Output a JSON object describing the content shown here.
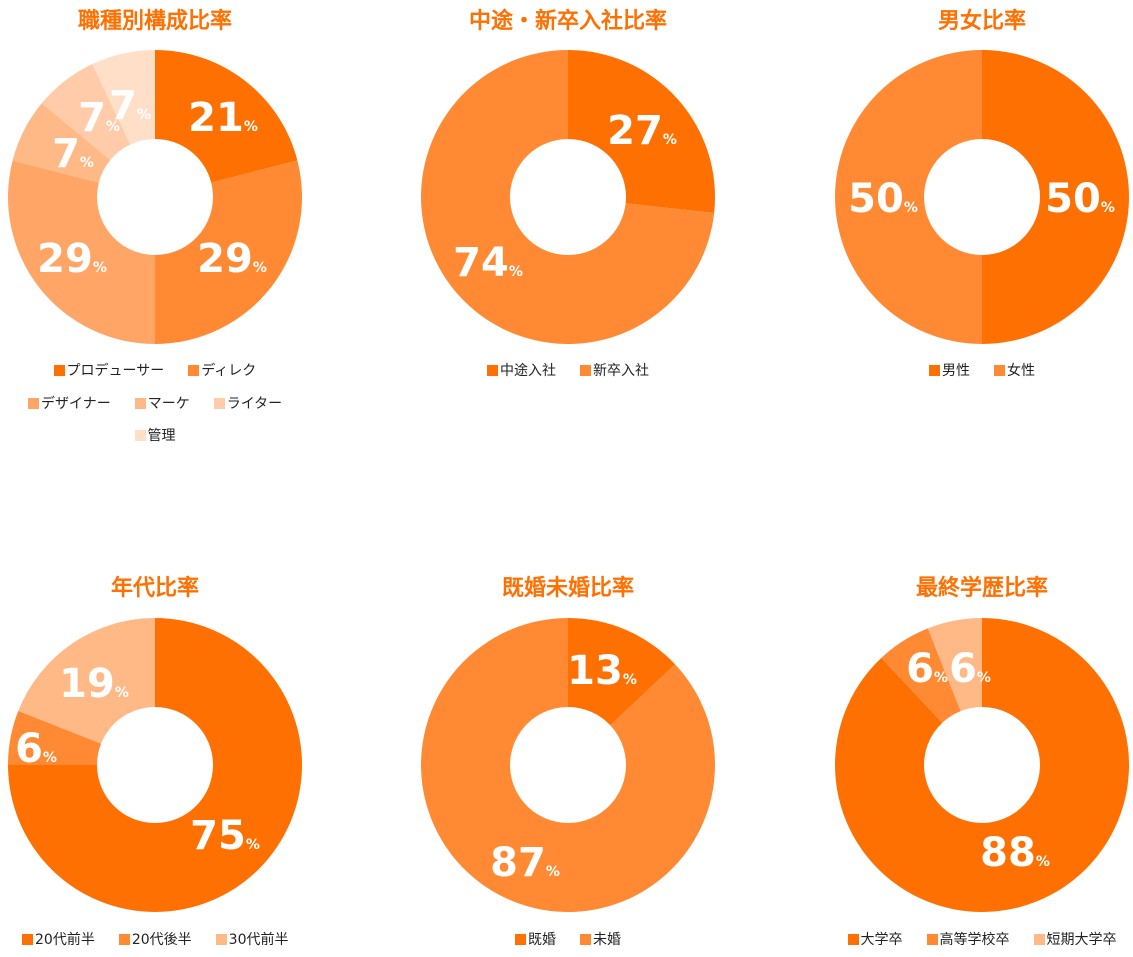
{
  "chart_data": [
    {
      "type": "pie",
      "title": "職種別構成比率",
      "categories": [
        "プロデューサー",
        "ディレク",
        "デザイナー",
        "マーケ",
        "ライター",
        "管理"
      ],
      "values": [
        21,
        29,
        29,
        7,
        7,
        7
      ],
      "value_labels": [
        "21",
        "29",
        "29",
        "7",
        "7",
        "7"
      ],
      "unit": "%",
      "colors": [
        "#FF7002",
        "#FF8A33",
        "#FFA566",
        "#FFB987",
        "#FFCBA8",
        "#FFDFC8"
      ],
      "legend_position": "bottom"
    },
    {
      "type": "pie",
      "title": "中途・新卒入社比率",
      "categories": [
        "中途入社",
        "新卒入社"
      ],
      "values": [
        27,
        74
      ],
      "value_labels": [
        "27",
        "74"
      ],
      "unit": "%",
      "colors": [
        "#FF7002",
        "#FF8A33"
      ],
      "legend_position": "bottom"
    },
    {
      "type": "pie",
      "title": "男女比率",
      "categories": [
        "男性",
        "女性"
      ],
      "values": [
        50,
        50
      ],
      "value_labels": [
        "50",
        "50"
      ],
      "unit": "%",
      "colors": [
        "#FF7002",
        "#FF8A33"
      ],
      "legend_position": "bottom"
    },
    {
      "type": "pie",
      "title": "年代比率",
      "categories": [
        "20代前半",
        "20代後半",
        "30代前半"
      ],
      "values": [
        75,
        6,
        19
      ],
      "value_labels": [
        "75",
        "6",
        "19"
      ],
      "unit": "%",
      "colors": [
        "#FF7002",
        "#FF8A33",
        "#FFB987"
      ],
      "legend_position": "bottom"
    },
    {
      "type": "pie",
      "title": "既婚未婚比率",
      "categories": [
        "既婚",
        "未婚"
      ],
      "values": [
        13,
        87
      ],
      "value_labels": [
        "13",
        "87"
      ],
      "unit": "%",
      "colors": [
        "#FF7002",
        "#FF8A33"
      ],
      "legend_position": "bottom"
    },
    {
      "type": "pie",
      "title": "最終学歴比率",
      "categories": [
        "大学卒",
        "高等学校卒",
        "短期大学卒"
      ],
      "values": [
        88,
        6,
        6
      ],
      "value_labels": [
        "88",
        "6",
        "6"
      ],
      "unit": "%",
      "colors": [
        "#FF7002",
        "#FF8A33",
        "#FFB987"
      ],
      "legend_position": "bottom"
    }
  ]
}
